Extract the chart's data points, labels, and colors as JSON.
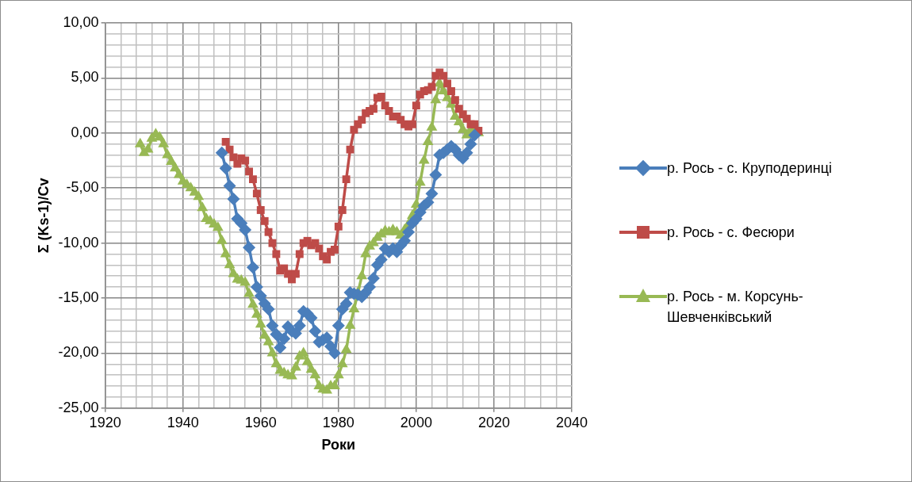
{
  "chart_data": {
    "type": "line",
    "xlabel": "Роки",
    "ylabel": "Σ (Ks-1)/Cv",
    "xlim": [
      1920,
      2040
    ],
    "ylim": [
      -25,
      10
    ],
    "xticks": [
      1920,
      {
        "value": 1924,
        "label": null
      },
      {
        "value": 1928,
        "label": null
      },
      {
        "value": 1932,
        "label": null
      },
      {
        "value": 1936,
        "label": null
      },
      1940,
      {
        "value": 1944,
        "label": null
      },
      {
        "value": 1948,
        "label": null
      },
      {
        "value": 1952,
        "label": null
      },
      {
        "value": 1956,
        "label": null
      },
      1960,
      {
        "value": 1964,
        "label": null
      },
      {
        "value": 1968,
        "label": null
      },
      {
        "value": 1972,
        "label": null
      },
      {
        "value": 1976,
        "label": null
      },
      1980,
      {
        "value": 1984,
        "label": null
      },
      {
        "value": 1988,
        "label": null
      },
      {
        "value": 1992,
        "label": null
      },
      {
        "value": 1996,
        "label": null
      },
      2000,
      {
        "value": 2004,
        "label": null
      },
      {
        "value": 2008,
        "label": null
      },
      {
        "value": 2012,
        "label": null
      },
      {
        "value": 2016,
        "label": null
      },
      2020,
      {
        "value": 2024,
        "label": null
      },
      {
        "value": 2028,
        "label": null
      },
      {
        "value": 2032,
        "label": null
      },
      {
        "value": 2036,
        "label": null
      },
      2040
    ],
    "yticks": [
      {
        "value": -25,
        "label": "-25,00"
      },
      {
        "value": -24,
        "label": null
      },
      {
        "value": -23,
        "label": null
      },
      {
        "value": -22,
        "label": null
      },
      {
        "value": -21,
        "label": null
      },
      {
        "value": -20,
        "label": "-20,00"
      },
      {
        "value": -19,
        "label": null
      },
      {
        "value": -18,
        "label": null
      },
      {
        "value": -17,
        "label": null
      },
      {
        "value": -16,
        "label": null
      },
      {
        "value": -15,
        "label": "-15,00"
      },
      {
        "value": -14,
        "label": null
      },
      {
        "value": -13,
        "label": null
      },
      {
        "value": -12,
        "label": null
      },
      {
        "value": -11,
        "label": null
      },
      {
        "value": -10,
        "label": "-10,00"
      },
      {
        "value": -9,
        "label": null
      },
      {
        "value": -8,
        "label": null
      },
      {
        "value": -7,
        "label": null
      },
      {
        "value": -6,
        "label": null
      },
      {
        "value": -5,
        "label": "-5,00"
      },
      {
        "value": -4,
        "label": null
      },
      {
        "value": -3,
        "label": null
      },
      {
        "value": -2,
        "label": null
      },
      {
        "value": -1,
        "label": null
      },
      {
        "value": 0,
        "label": "0,00"
      },
      {
        "value": 1,
        "label": null
      },
      {
        "value": 2,
        "label": null
      },
      {
        "value": 3,
        "label": null
      },
      {
        "value": 4,
        "label": null
      },
      {
        "value": 5,
        "label": "5,00"
      },
      {
        "value": 6,
        "label": null
      },
      {
        "value": 7,
        "label": null
      },
      {
        "value": 8,
        "label": null
      },
      {
        "value": 9,
        "label": null
      },
      {
        "value": 10,
        "label": "10,00"
      }
    ],
    "grid": true,
    "legend": "right",
    "line_style": "solid",
    "series": [
      {
        "name": "р. Рось - с. Круподеринці",
        "color": "#4a7ebb",
        "marker": "diamond",
        "x": [
          1950,
          1951,
          1952,
          1953,
          1954,
          1955,
          1956,
          1957,
          1958,
          1959,
          1960,
          1961,
          1962,
          1963,
          1964,
          1965,
          1966,
          1967,
          1968,
          1969,
          1970,
          1971,
          1972,
          1973,
          1974,
          1975,
          1976,
          1977,
          1978,
          1979,
          1980,
          1981,
          1982,
          1983,
          1984,
          1985,
          1986,
          1987,
          1988,
          1989,
          1990,
          1991,
          1992,
          1993,
          1994,
          1995,
          1996,
          1997,
          1998,
          1999,
          2000,
          2001,
          2002,
          2003,
          2004,
          2005,
          2006,
          2007,
          2008,
          2009,
          2010,
          2011,
          2012,
          2013,
          2014,
          2015
        ],
        "values": [
          -1.8,
          -3.2,
          -4.8,
          -6.0,
          -7.8,
          -8.2,
          -8.8,
          -10.4,
          -12.2,
          -14.0,
          -14.8,
          -15.5,
          -16.0,
          -17.5,
          -18.3,
          -19.5,
          -18.7,
          -17.6,
          -18.0,
          -18.2,
          -17.5,
          -16.2,
          -16.4,
          -16.8,
          -18.0,
          -19.0,
          -18.8,
          -18.6,
          -19.4,
          -20.0,
          -17.5,
          -16.0,
          -15.5,
          -14.5,
          -14.6,
          -14.7,
          -14.9,
          -14.5,
          -14.0,
          -13.2,
          -12.0,
          -11.5,
          -10.5,
          -10.8,
          -10.5,
          -10.8,
          -10.2,
          -9.8,
          -9.0,
          -8.2,
          -7.8,
          -7.2,
          -6.6,
          -6.3,
          -5.5,
          -3.8,
          -2.0,
          -1.8,
          -1.5,
          -1.2,
          -1.5,
          -2.0,
          -2.3,
          -1.8,
          -1.0,
          -0.2
        ]
      },
      {
        "name": "р. Рось - с. Фесюри",
        "color": "#be4b48",
        "marker": "square",
        "x": [
          1951,
          1952,
          1953,
          1954,
          1955,
          1956,
          1957,
          1958,
          1959,
          1960,
          1961,
          1962,
          1963,
          1964,
          1965,
          1966,
          1967,
          1968,
          1969,
          1970,
          1971,
          1972,
          1973,
          1974,
          1975,
          1976,
          1977,
          1978,
          1979,
          1980,
          1981,
          1982,
          1983,
          1984,
          1985,
          1986,
          1987,
          1988,
          1989,
          1990,
          1991,
          1992,
          1993,
          1994,
          1995,
          1996,
          1997,
          1998,
          1999,
          2000,
          2001,
          2002,
          2003,
          2004,
          2005,
          2006,
          2007,
          2008,
          2009,
          2010,
          2011,
          2012,
          2013,
          2014,
          2015,
          2016
        ],
        "values": [
          -0.8,
          -1.5,
          -2.2,
          -2.8,
          -2.3,
          -2.5,
          -3.5,
          -4.2,
          -5.5,
          -7.0,
          -8.0,
          -9.0,
          -10.0,
          -11.0,
          -12.5,
          -12.3,
          -12.8,
          -13.3,
          -12.8,
          -11.0,
          -10.0,
          -9.8,
          -10.2,
          -10.0,
          -10.5,
          -11.2,
          -11.5,
          -10.8,
          -10.6,
          -8.5,
          -7.0,
          -4.2,
          -1.5,
          0.3,
          0.8,
          1.2,
          1.8,
          2.0,
          2.2,
          3.2,
          3.3,
          2.5,
          2.0,
          1.5,
          1.5,
          1.2,
          0.8,
          0.6,
          0.8,
          2.5,
          3.5,
          3.8,
          3.9,
          4.2,
          5.2,
          5.5,
          5.2,
          4.5,
          3.8,
          3.0,
          2.2,
          1.7,
          1.3,
          0.8,
          0.8,
          0.2
        ]
      },
      {
        "name": "р. Рось - м. Корсунь-Шевченківський",
        "color": "#98b954",
        "marker": "triangle",
        "x": [
          1929,
          1930,
          1931,
          1932,
          1933,
          1934,
          1935,
          1936,
          1937,
          1938,
          1939,
          1940,
          1941,
          1942,
          1943,
          1944,
          1945,
          1946,
          1947,
          1948,
          1949,
          1950,
          1951,
          1952,
          1953,
          1954,
          1955,
          1956,
          1957,
          1958,
          1959,
          1960,
          1961,
          1962,
          1963,
          1964,
          1965,
          1966,
          1967,
          1968,
          1969,
          1970,
          1971,
          1972,
          1973,
          1974,
          1975,
          1976,
          1977,
          1978,
          1979,
          1980,
          1981,
          1982,
          1983,
          1984,
          1985,
          1986,
          1987,
          1988,
          1989,
          1990,
          1991,
          1992,
          1993,
          1994,
          1995,
          1996,
          1997,
          1998,
          1999,
          2000,
          2001,
          2002,
          2003,
          2004,
          2005,
          2006,
          2007,
          2008,
          2009,
          2010,
          2011,
          2012,
          2013,
          2014,
          2015,
          2016
        ],
        "values": [
          -1.0,
          -1.8,
          -1.5,
          -0.5,
          -0.1,
          -0.4,
          -1.0,
          -2.0,
          -2.6,
          -3.2,
          -3.8,
          -4.4,
          -4.7,
          -5.0,
          -5.4,
          -5.8,
          -6.8,
          -7.8,
          -8.0,
          -8.3,
          -8.6,
          -9.8,
          -11.0,
          -12.0,
          -12.8,
          -13.3,
          -13.4,
          -13.6,
          -14.6,
          -15.6,
          -16.5,
          -17.4,
          -18.4,
          -19.0,
          -20.0,
          -21.0,
          -21.6,
          -21.8,
          -22.0,
          -22.1,
          -21.3,
          -20.3,
          -20.0,
          -20.8,
          -21.5,
          -22.0,
          -23.0,
          -23.3,
          -23.4,
          -23.0,
          -23.0,
          -22.0,
          -21.0,
          -19.7,
          -17.5,
          -16.0,
          -14.5,
          -13.0,
          -11.0,
          -10.3,
          -10.0,
          -9.5,
          -9.2,
          -8.9,
          -9.0,
          -8.8,
          -9.0,
          -9.3,
          -8.8,
          -8.3,
          -7.5,
          -6.5,
          -4.5,
          -2.5,
          -0.8,
          0.5,
          3.0,
          4.5,
          3.8,
          3.2,
          2.6,
          1.5,
          1.0,
          0.3,
          -0.2,
          0.3,
          0.2,
          0.0
        ]
      }
    ]
  }
}
